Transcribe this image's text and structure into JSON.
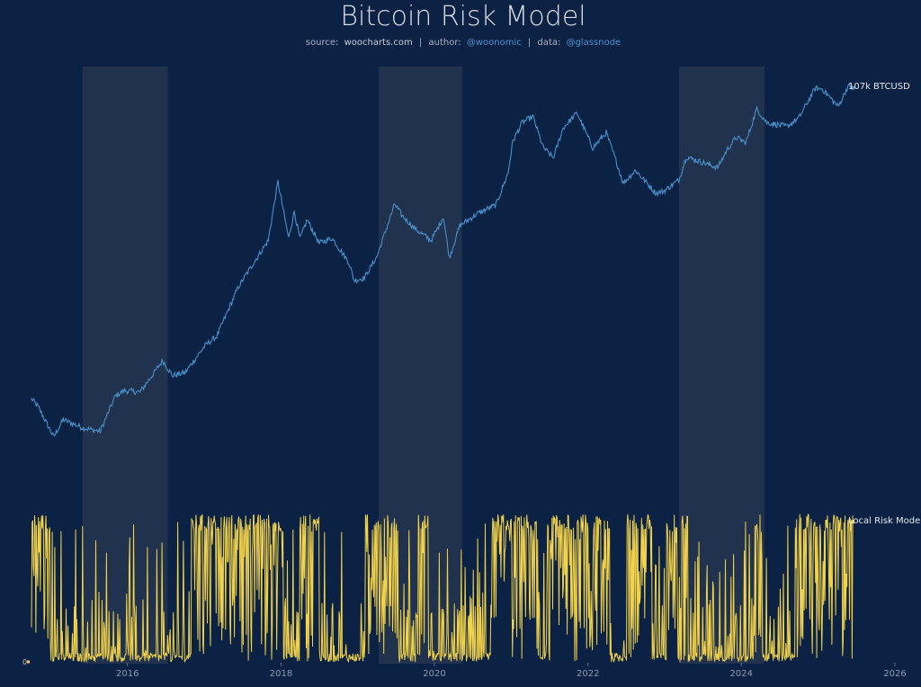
{
  "title": "Bitcoin Risk Model",
  "subtitle": {
    "source_label": "source:",
    "source": "woocharts.com",
    "author_label": "author:",
    "author": "@woonomic",
    "data_label": "data:",
    "data": "@glassnode",
    "separator": "|"
  },
  "colors": {
    "background": "#0c2245",
    "price_line": "#4a90c8",
    "risk_line": "#f1d24a",
    "shade_band": "#24354f"
  },
  "chart_data": {
    "type": "line",
    "x_axis": {
      "ticks": [
        "2016",
        "2018",
        "2020",
        "2022",
        "2024",
        "2026"
      ],
      "range": [
        "2014-10-01",
        "2026-01-01"
      ]
    },
    "shaded_periods": [
      [
        "2015-06-01",
        "2016-07-10"
      ],
      [
        "2019-04-10",
        "2020-05-11"
      ],
      [
        "2023-03-10",
        "2024-04-20"
      ]
    ],
    "series": [
      {
        "name": "BTCUSD",
        "end_label": "107k BTCUSD",
        "scale": "log",
        "points": [
          [
            "2014-10-01",
            380
          ],
          [
            "2014-11-01",
            330
          ],
          [
            "2015-01-15",
            190
          ],
          [
            "2015-03-01",
            260
          ],
          [
            "2015-06-01",
            225
          ],
          [
            "2015-08-24",
            210
          ],
          [
            "2015-11-04",
            400
          ],
          [
            "2015-12-15",
            440
          ],
          [
            "2016-03-01",
            430
          ],
          [
            "2016-06-17",
            760
          ],
          [
            "2016-08-01",
            580
          ],
          [
            "2016-10-01",
            610
          ],
          [
            "2017-01-05",
            1000
          ],
          [
            "2017-03-01",
            1180
          ],
          [
            "2017-06-12",
            2900
          ],
          [
            "2017-09-01",
            4700
          ],
          [
            "2017-11-01",
            6700
          ],
          [
            "2017-12-17",
            19500
          ],
          [
            "2018-02-06",
            7000
          ],
          [
            "2018-03-05",
            11400
          ],
          [
            "2018-04-01",
            6900
          ],
          [
            "2018-05-05",
            9800
          ],
          [
            "2018-07-01",
            6400
          ],
          [
            "2018-09-01",
            7000
          ],
          [
            "2018-11-20",
            4500
          ],
          [
            "2018-12-15",
            3250
          ],
          [
            "2019-02-01",
            3400
          ],
          [
            "2019-04-02",
            5000
          ],
          [
            "2019-06-26",
            13000
          ],
          [
            "2019-08-01",
            10500
          ],
          [
            "2019-10-01",
            8300
          ],
          [
            "2019-12-17",
            6700
          ],
          [
            "2020-02-13",
            10300
          ],
          [
            "2020-03-12",
            4900
          ],
          [
            "2020-05-01",
            8800
          ],
          [
            "2020-07-27",
            11000
          ],
          [
            "2020-10-20",
            12800
          ],
          [
            "2020-12-17",
            23000
          ],
          [
            "2021-01-08",
            40500
          ],
          [
            "2021-02-21",
            57000
          ],
          [
            "2021-04-14",
            63500
          ],
          [
            "2021-06-01",
            36500
          ],
          [
            "2021-07-20",
            30000
          ],
          [
            "2021-09-06",
            52000
          ],
          [
            "2021-11-10",
            68000
          ],
          [
            "2022-01-24",
            36000
          ],
          [
            "2022-03-29",
            47500
          ],
          [
            "2022-05-10",
            30000
          ],
          [
            "2022-06-18",
            19000
          ],
          [
            "2022-08-15",
            24000
          ],
          [
            "2022-11-21",
            15800
          ],
          [
            "2022-12-30",
            16500
          ],
          [
            "2023-03-10",
            20200
          ],
          [
            "2023-04-14",
            30500
          ],
          [
            "2023-09-11",
            25200
          ],
          [
            "2023-10-24",
            34500
          ],
          [
            "2023-12-08",
            43700
          ],
          [
            "2024-01-23",
            39500
          ],
          [
            "2024-03-14",
            73000
          ],
          [
            "2024-05-01",
            57000
          ],
          [
            "2024-08-05",
            53000
          ],
          [
            "2024-10-01",
            62000
          ],
          [
            "2024-12-17",
            106000
          ],
          [
            "2025-01-20",
            105000
          ],
          [
            "2025-04-07",
            76000
          ],
          [
            "2025-05-22",
            110000
          ],
          [
            "2025-06-15",
            107000
          ]
        ]
      },
      {
        "name": "Local Risk Model",
        "end_label": "Local Risk Model",
        "range": [
          0,
          1
        ],
        "zero_label": "0"
      }
    ]
  }
}
